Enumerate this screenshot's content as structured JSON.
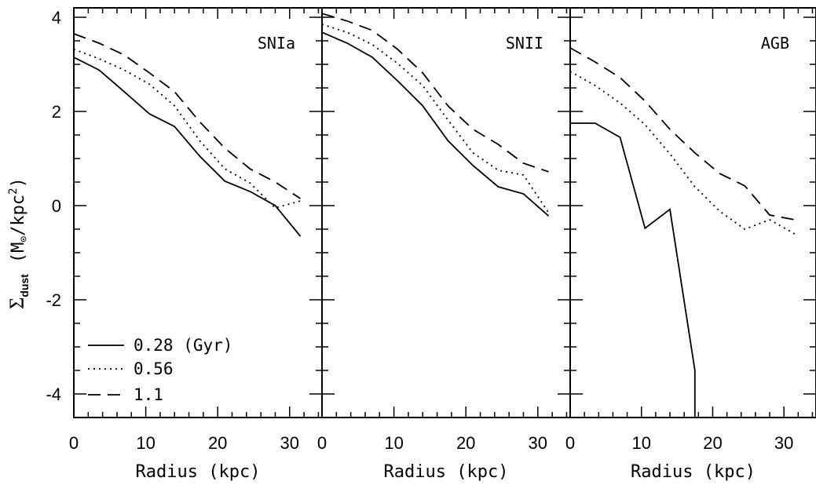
{
  "chart_data": {
    "type": "line",
    "ylabel": "Σdust (M⊙/kpc²)",
    "ylabel_parts": {
      "sigma": "Σ",
      "sub": "dust",
      "units": "(M",
      "odot": "⊙",
      "units2": "/kpc",
      "sup": "2",
      "close": ")"
    },
    "ylim": [
      -4.5,
      4.2
    ],
    "y_ticks": [
      4,
      2,
      0,
      -2,
      -4
    ],
    "y_tick_labels": [
      "4",
      "2",
      "0",
      "-2",
      "-4"
    ],
    "legend": {
      "placement": "lower-left (first panel)",
      "entries": [
        {
          "label": "0.28 (Gyr)",
          "style": "solid"
        },
        {
          "label": "0.56",
          "style": "dotted"
        },
        {
          "label": "1.1",
          "style": "dashed"
        }
      ]
    },
    "panels": [
      {
        "label": "SNIa",
        "xlabel": "Radius (kpc)",
        "xlim": [
          0,
          34.5
        ],
        "x_ticks": [
          0,
          10,
          20,
          30
        ],
        "x_tick_labels": [
          "0",
          "10",
          "20",
          "30"
        ],
        "series": [
          {
            "style": "solid",
            "x": [
              0,
              3.5,
              7,
              10.5,
              14,
              17.5,
              21,
              24.5,
              28,
              31.5
            ],
            "y": [
              3.15,
              2.88,
              2.42,
              1.95,
              1.68,
              1.05,
              0.52,
              0.3,
              0.0,
              -0.65
            ]
          },
          {
            "style": "dotted",
            "x": [
              0,
              3.5,
              7,
              10.5,
              14,
              17.5,
              21,
              24.5,
              28,
              31.5
            ],
            "y": [
              3.32,
              3.12,
              2.88,
              2.58,
              2.12,
              1.38,
              0.78,
              0.48,
              -0.05,
              0.1
            ]
          },
          {
            "style": "dashed",
            "x": [
              0,
              3.5,
              7,
              10.5,
              14,
              17.5,
              21,
              24.5,
              28,
              31.5
            ],
            "y": [
              3.65,
              3.45,
              3.2,
              2.82,
              2.42,
              1.78,
              1.22,
              0.78,
              0.5,
              0.15
            ]
          }
        ]
      },
      {
        "label": "SNII",
        "xlabel": "Radius (kpc)",
        "xlim": [
          0,
          34.5
        ],
        "x_ticks": [
          0,
          10,
          20,
          30
        ],
        "x_tick_labels": [
          "0",
          "10",
          "20",
          "30"
        ],
        "series": [
          {
            "style": "solid",
            "x": [
              0,
              3.5,
              7,
              10.5,
              14,
              17.5,
              21,
              24.5,
              28,
              31.5
            ],
            "y": [
              3.68,
              3.45,
              3.15,
              2.65,
              2.12,
              1.38,
              0.85,
              0.4,
              0.25,
              -0.22
            ]
          },
          {
            "style": "dotted",
            "x": [
              0,
              3.5,
              7,
              10.5,
              14,
              17.5,
              21,
              24.5,
              28,
              31.5
            ],
            "y": [
              3.85,
              3.68,
              3.42,
              3.02,
              2.55,
              1.82,
              1.12,
              0.75,
              0.65,
              -0.15
            ]
          },
          {
            "style": "dashed",
            "x": [
              0,
              3.5,
              7,
              10.5,
              14,
              17.5,
              21,
              24.5,
              28,
              31.5
            ],
            "y": [
              4.08,
              3.92,
              3.72,
              3.32,
              2.82,
              2.12,
              1.62,
              1.3,
              0.9,
              0.72
            ]
          }
        ]
      },
      {
        "label": "AGB",
        "xlabel": "Radius (kpc)",
        "xlim": [
          0,
          34.5
        ],
        "x_ticks": [
          0,
          10,
          20,
          30
        ],
        "x_tick_labels": [
          "0",
          "10",
          "20",
          "30"
        ],
        "series": [
          {
            "style": "solid",
            "x": [
              0,
              3.5,
              7,
              10.5,
              14,
              17.5,
              17.5
            ],
            "y": [
              1.75,
              1.75,
              1.45,
              -0.48,
              -0.08,
              -3.5,
              -4.5
            ]
          },
          {
            "style": "dotted",
            "x": [
              0,
              3.5,
              7,
              10.5,
              14,
              17.5,
              21,
              24.5,
              28,
              31.5
            ],
            "y": [
              2.85,
              2.55,
              2.18,
              1.72,
              1.1,
              0.4,
              -0.12,
              -0.5,
              -0.3,
              -0.6
            ]
          },
          {
            "style": "dashed",
            "x": [
              0,
              3.5,
              7,
              10.5,
              14,
              17.5,
              21,
              24.5,
              28,
              31.5
            ],
            "y": [
              3.35,
              3.05,
              2.72,
              2.22,
              1.62,
              1.12,
              0.68,
              0.42,
              -0.2,
              -0.3
            ]
          }
        ]
      }
    ]
  }
}
